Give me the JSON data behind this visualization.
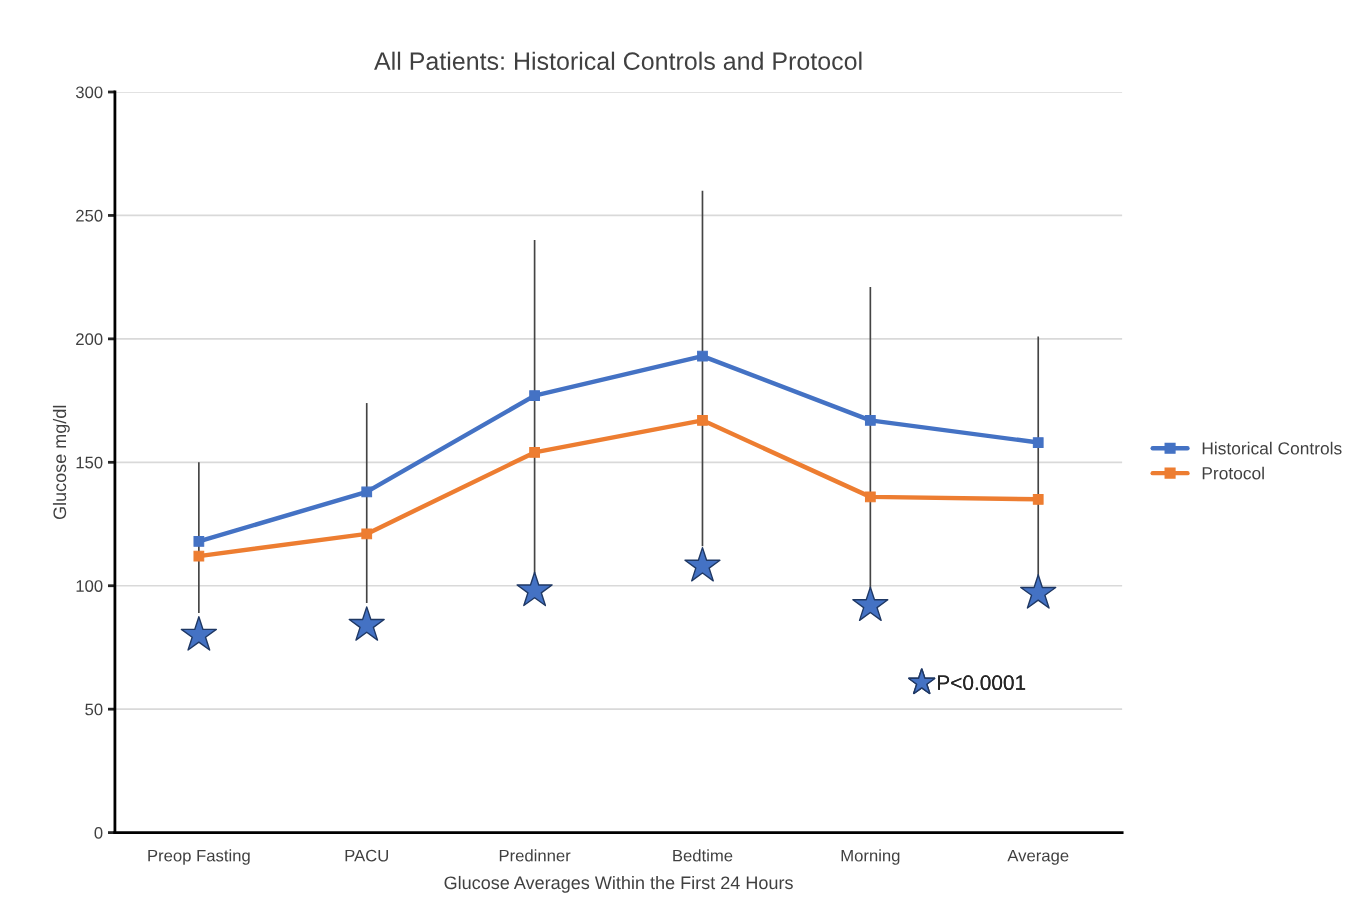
{
  "chart_data": {
    "type": "line",
    "title": "All Patients: Historical Controls and Protocol",
    "xlabel": "Glucose Averages Within the First 24 Hours",
    "ylabel": "Glucose mg/dl",
    "categories": [
      "Preop Fasting",
      "PACU",
      "Predinner",
      "Bedtime",
      "Morning",
      "Average"
    ],
    "series": [
      {
        "name": "Historical Controls",
        "color": "#4472c4",
        "values": [
          118,
          138,
          177,
          193,
          167,
          158
        ],
        "errors": [
          [
            89,
            150
          ],
          [
            93,
            174
          ],
          [
            105,
            240
          ],
          [
            116,
            260
          ],
          [
            99,
            221
          ],
          [
            104,
            201
          ]
        ]
      },
      {
        "name": "Protocol",
        "color": "#ed7d31",
        "values": [
          112,
          121,
          154,
          167,
          136,
          135
        ]
      },
      {
        "name": "P<0.0001",
        "type": "scatter",
        "marker": "star",
        "color": "#4472c4",
        "values": [
          80,
          84,
          98,
          108,
          92,
          97
        ]
      }
    ],
    "marker": "square",
    "ylim": [
      0,
      300
    ],
    "yticks": [
      0,
      50,
      100,
      150,
      200,
      250,
      300
    ],
    "grid": "y",
    "legend": "right"
  }
}
